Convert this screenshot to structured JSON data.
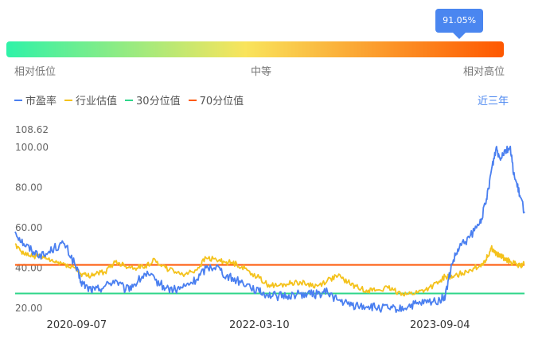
{
  "percentile": {
    "badge": "91.05%",
    "value": 0.9105,
    "low_label": "相对低位",
    "mid_label": "中等",
    "high_label": "相对高位",
    "badge_color": "#4a86f0",
    "gradient_colors": [
      "#2ff2a8",
      "#f9e45c",
      "#fe5700"
    ]
  },
  "legend": {
    "pe": "市盈率",
    "industry": "行业估值",
    "p30": "30分位值",
    "p70": "70分位值"
  },
  "range_label": "近三年",
  "colors": {
    "pe": "#4a7ff0",
    "industry": "#f4c21c",
    "p30": "#2fd68a",
    "p70": "#fe5a0a",
    "accent": "#4a86f0"
  },
  "chart_data": {
    "type": "line",
    "y_ticks": [
      "108.62",
      "100.00",
      "80.00",
      "60.00",
      "40.00",
      "20.00"
    ],
    "y_tick_values": [
      108.62,
      100,
      80,
      60,
      40,
      20
    ],
    "ylim": [
      20,
      108.62
    ],
    "x_ticks": [
      "2020-09-07",
      "2022-03-10",
      "2023-09-04"
    ],
    "x_tick_values": [
      "2020-09-07",
      "2022-03-10",
      "2023-09-04"
    ],
    "xlim": [
      "2020-03-06",
      "2024-05-15"
    ],
    "reference_lines": [
      {
        "name": "30分位值",
        "value": 27.3
      },
      {
        "name": "70分位值",
        "value": 41.5
      }
    ],
    "series": [
      {
        "name": "市盈率",
        "dates": [
          "2020-03-06",
          "2020-04-01",
          "2020-05-01",
          "2020-06-01",
          "2020-07-01",
          "2020-08-01",
          "2020-09-01",
          "2020-09-20",
          "2020-10-10",
          "2020-11-01",
          "2020-12-01",
          "2021-01-01",
          "2021-02-01",
          "2021-03-01",
          "2021-04-01",
          "2021-05-01",
          "2021-06-01",
          "2021-07-01",
          "2021-08-01",
          "2021-09-01",
          "2021-10-01",
          "2021-11-01",
          "2021-12-01",
          "2022-01-01",
          "2022-02-01",
          "2022-03-10",
          "2022-04-01",
          "2022-05-01",
          "2022-06-01",
          "2022-07-01",
          "2022-08-01",
          "2022-09-01",
          "2022-10-01",
          "2022-11-01",
          "2022-12-01",
          "2023-01-01",
          "2023-02-01",
          "2023-03-01",
          "2023-04-01",
          "2023-05-01",
          "2023-06-01",
          "2023-07-01",
          "2023-08-01",
          "2023-09-04",
          "2023-09-20",
          "2023-10-10",
          "2023-11-01",
          "2023-12-01",
          "2024-01-01",
          "2024-01-20",
          "2024-02-05",
          "2024-02-20",
          "2024-03-01",
          "2024-03-15",
          "2024-04-01",
          "2024-04-15",
          "2024-05-01",
          "2024-05-15"
        ],
        "values": [
          58,
          52,
          48,
          46,
          50,
          52,
          42,
          33,
          30,
          29,
          31,
          34,
          29,
          32,
          37,
          34,
          30,
          29,
          31,
          34,
          40,
          41,
          36,
          34,
          32,
          28,
          27,
          26,
          26,
          27,
          27,
          27,
          28,
          24,
          22,
          21,
          21,
          20,
          20,
          19,
          21,
          22,
          23,
          24,
          26,
          42,
          50,
          55,
          62,
          72,
          88,
          100,
          95,
          98,
          100,
          85,
          76,
          68
        ]
      },
      {
        "name": "行业估值",
        "dates": [
          "2020-03-06",
          "2020-04-01",
          "2020-05-01",
          "2020-06-01",
          "2020-07-01",
          "2020-08-01",
          "2020-09-01",
          "2020-09-20",
          "2020-10-10",
          "2020-11-01",
          "2020-12-01",
          "2021-01-01",
          "2021-02-01",
          "2021-03-01",
          "2021-04-01",
          "2021-05-01",
          "2021-06-01",
          "2021-07-01",
          "2021-08-01",
          "2021-09-01",
          "2021-10-01",
          "2021-11-01",
          "2021-12-01",
          "2022-01-01",
          "2022-02-01",
          "2022-03-10",
          "2022-04-01",
          "2022-05-01",
          "2022-06-01",
          "2022-07-01",
          "2022-08-01",
          "2022-09-01",
          "2022-10-01",
          "2022-11-01",
          "2022-12-01",
          "2023-01-01",
          "2023-02-01",
          "2023-03-01",
          "2023-04-01",
          "2023-05-01",
          "2023-06-01",
          "2023-07-01",
          "2023-08-01",
          "2023-09-04",
          "2023-09-20",
          "2023-10-10",
          "2023-11-01",
          "2023-12-01",
          "2024-01-01",
          "2024-01-20",
          "2024-02-05",
          "2024-02-20",
          "2024-03-01",
          "2024-03-15",
          "2024-04-01",
          "2024-04-15",
          "2024-05-01",
          "2024-05-15"
        ],
        "values": [
          52,
          47,
          46,
          45,
          43,
          42,
          40,
          37,
          36,
          37,
          38,
          43,
          41,
          40,
          41,
          44,
          40,
          38,
          37,
          39,
          45,
          44,
          43,
          42,
          39,
          35,
          32,
          31,
          32,
          33,
          32,
          31,
          34,
          36,
          33,
          30,
          29,
          29,
          30,
          28,
          27,
          28,
          30,
          33,
          36,
          35,
          37,
          39,
          41,
          44,
          50,
          47,
          46,
          45,
          43,
          42,
          41,
          42
        ]
      }
    ]
  }
}
